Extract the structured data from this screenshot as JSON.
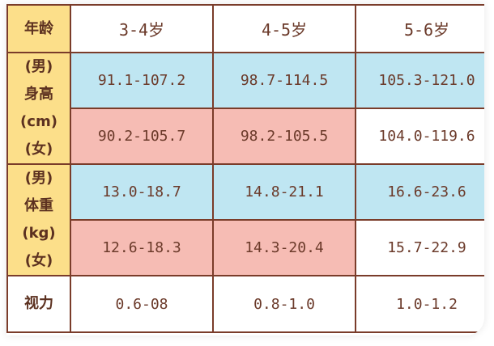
{
  "header": {
    "label": "年龄",
    "columns": [
      "3-4岁",
      "4-5岁",
      "5-6岁"
    ]
  },
  "height": {
    "label_lines": [
      "(男)",
      "身高",
      "(cm)",
      "(女)"
    ],
    "male": [
      "91.1-107.2",
      "98.7-114.5",
      "105.3-121.0"
    ],
    "female": [
      "90.2-105.7",
      "98.2-105.5",
      "104.0-119.6"
    ]
  },
  "weight": {
    "label_lines": [
      "(男)",
      "体重",
      "(kg)",
      "(女)"
    ],
    "male": [
      "13.0-18.7",
      "14.8-21.1",
      "16.6-23.6"
    ],
    "female": [
      "12.6-18.3",
      "14.3-20.4",
      "15.7-22.9"
    ]
  },
  "vision": {
    "label": "视力",
    "values": [
      "0.6-08",
      "0.8-1.0",
      "1.0-1.2"
    ]
  },
  "colors": {
    "label_bg": "#fcdf8a",
    "male_row": "#bfe6f2",
    "female_row": "#f6bcb4",
    "border": "#7a3c2a",
    "text": "#6b3a2a"
  }
}
